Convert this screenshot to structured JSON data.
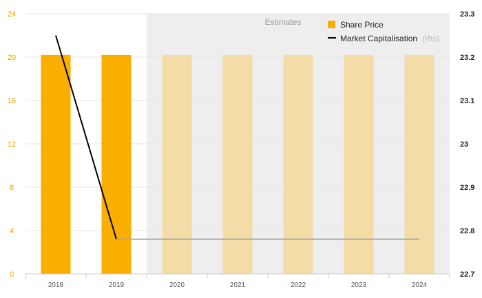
{
  "chart_data": {
    "type": "bar",
    "categories": [
      "2018",
      "2019",
      "2020",
      "2021",
      "2022",
      "2023",
      "2024"
    ],
    "estimate_start_index": 2,
    "estimates_label": "Estimates",
    "left_axis": {
      "ticks": [
        0,
        4,
        8,
        12,
        16,
        20,
        24
      ],
      "ylim": [
        0,
        24
      ]
    },
    "right_axis": {
      "ticks": [
        "22.7",
        "22.8",
        "22.9",
        "23",
        "23.1",
        "23.2",
        "23.3"
      ],
      "ylim": [
        22.7,
        23.3
      ]
    },
    "series": [
      {
        "name": "Share Price",
        "kind": "bar",
        "axis": "left",
        "color": "#f9ae00",
        "estimate_color": "#f3dca5",
        "values": [
          20.2,
          20.2,
          20.2,
          20.2,
          20.2,
          20.2,
          20.2
        ]
      },
      {
        "name": "Market Capitalisation",
        "name_suffix": "(rhs)",
        "kind": "line",
        "axis": "right",
        "color": "#000000",
        "estimate_color": "#aaaaaa",
        "values": [
          23.25,
          22.78,
          22.78,
          22.78,
          22.78,
          22.78,
          22.78
        ]
      }
    ],
    "legend": "top-right",
    "grid": true
  }
}
